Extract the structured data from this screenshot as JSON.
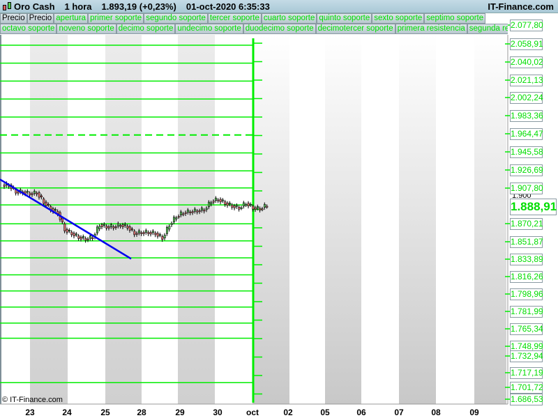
{
  "header": {
    "instrument": "Oro Cash",
    "timeframe": "1 hora",
    "price": "1.893,19 (+0,23%)",
    "datetime": "01-oct-2020 6:35:33",
    "brand": "IT-Finance.com"
  },
  "legend_row1": [
    "Precio",
    "Precio",
    "apertura",
    "primer soporte",
    "segundo soporte",
    "tercer soporte",
    "cuarto soporte",
    "quinto soporte",
    "sexto soporte",
    "septimo soporte"
  ],
  "legend_row2": [
    "octavo soporte",
    "noveno soporte",
    "decimo soporte",
    "undecimo soporte",
    "duodecimo soporte",
    "decimotercer soporte",
    "primera resistencia",
    "segunda resistencia"
  ],
  "colors": {
    "levels": "#00ee00",
    "trendline": "#0000ee",
    "up_candle": "#66cc66",
    "down_candle": "#e07070"
  },
  "price_axis": [
    "2.077,80",
    "2.058,91",
    "2.040,02",
    "2.021,13",
    "2.002,24",
    "1.983,36",
    "1.964,47",
    "1.945,58",
    "1.926,69",
    "1.907,80",
    "1.870,21",
    "1.851,87",
    "1.833,89",
    "1.816,26",
    "1.798,96",
    "1.781,99",
    "1.765,34",
    "1.748,99",
    "1.732,94",
    "1.717,19",
    "1.701,72",
    "1.686,53"
  ],
  "tick_1900": "1.900",
  "current_price": "1.888,91",
  "x_axis": [
    "23",
    "24",
    "25",
    "28",
    "29",
    "30",
    "oct",
    "02",
    "05",
    "06",
    "07",
    "08",
    "09"
  ],
  "copyright": "© IT-Finance.com",
  "chart_data": {
    "type": "candlestick",
    "closes": [
      1911,
      1904,
      1904,
      1902,
      1903,
      1893,
      1886,
      1882,
      1864,
      1860,
      1856,
      1854,
      1856,
      1869,
      1867,
      1867,
      1869,
      1867,
      1860,
      1861,
      1861,
      1860,
      1855,
      1869,
      1878,
      1882,
      1883,
      1884,
      1885,
      1894,
      1896,
      1892,
      1889,
      1887,
      1892,
      1887,
      1886,
      1890
    ],
    "levels": [
      2059,
      2040,
      2021,
      2002,
      1983,
      1964,
      1945,
      1926,
      1908,
      1890,
      1870,
      1852,
      1834,
      1816,
      1799,
      1782,
      1765,
      1749,
      1702
    ],
    "dashed_level": 1964,
    "trendline": {
      "from": 1917,
      "to": 1833
    }
  }
}
